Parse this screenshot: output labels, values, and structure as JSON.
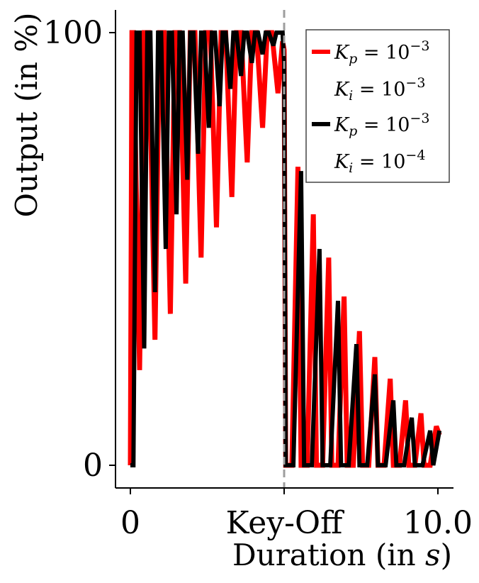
{
  "chart_data": {
    "type": "line",
    "xlabel": "Duration (in s)",
    "xlabel_parts": {
      "prefix": "Duration (in ",
      "var": "s",
      "suffix": ")"
    },
    "ylabel": "Output (in %)",
    "xlim": [
      -0.5,
      10.5
    ],
    "ylim": [
      -5,
      105
    ],
    "x_ticks": [
      {
        "value": 0,
        "label": "0"
      },
      {
        "value": 5,
        "label": "Key-Off"
      },
      {
        "value": 10,
        "label": "10.0"
      }
    ],
    "y_ticks": [
      {
        "value": 0,
        "label": "0"
      },
      {
        "value": 100,
        "label": "100"
      }
    ],
    "key_off": 5,
    "legend_position": "top-right",
    "grid": false,
    "series": [
      {
        "name": "Kp = 10^-3, Ki = 10^-3",
        "legend_lines": [
          {
            "sym": "K",
            "sub": "p",
            "eq": " = 10",
            "sup": "−3"
          },
          {
            "sym": "K",
            "sub": "i",
            "eq": " = 10",
            "sup": "−3"
          }
        ],
        "color": "#ff0000",
        "line_width": 7,
        "x": [
          0,
          0.05,
          0.1,
          0.3,
          0.45,
          0.6,
          0.8,
          0.95,
          1.1,
          1.3,
          1.45,
          1.6,
          1.8,
          1.95,
          2.1,
          2.3,
          2.45,
          2.6,
          2.8,
          2.95,
          3.1,
          3.3,
          3.45,
          3.6,
          3.8,
          3.95,
          4.1,
          4.3,
          4.45,
          4.6,
          4.8,
          4.95,
          5.0,
          5.05,
          5.25,
          5.45,
          5.55,
          5.75,
          5.95,
          6.05,
          6.25,
          6.45,
          6.55,
          6.75,
          6.95,
          7.05,
          7.25,
          7.45,
          7.55,
          7.75,
          7.95,
          8.05,
          8.25,
          8.45,
          8.55,
          8.75,
          8.95,
          9.05,
          9.25,
          9.45,
          9.55,
          9.75,
          9.95,
          10.05
        ],
        "y": [
          0,
          100,
          100,
          22,
          100,
          100,
          29,
          100,
          100,
          35,
          100,
          100,
          42,
          100,
          100,
          48,
          100,
          100,
          55,
          100,
          100,
          62,
          100,
          100,
          70,
          100,
          100,
          78,
          100,
          100,
          86,
          98,
          96,
          0,
          0,
          69,
          0,
          0,
          58,
          0,
          0,
          48,
          0,
          0,
          39,
          0,
          0,
          31,
          0,
          0,
          25,
          0,
          0,
          20,
          0,
          0,
          15,
          0,
          0,
          12,
          0,
          0,
          9,
          7
        ]
      },
      {
        "name": "Kp = 10^-3, Ki = 10^-4",
        "legend_lines": [
          {
            "sym": "K",
            "sub": "p",
            "eq": " = 10",
            "sup": "−3"
          },
          {
            "sym": "K",
            "sub": "i",
            "eq": " = 10",
            "sup": "−4"
          }
        ],
        "color": "#000000",
        "line_width": 6,
        "x": [
          0,
          0.1,
          0.2,
          0.3,
          0.45,
          0.55,
          0.65,
          0.8,
          0.9,
          1.0,
          1.15,
          1.25,
          1.35,
          1.5,
          1.6,
          1.7,
          1.85,
          1.95,
          2.05,
          2.2,
          2.3,
          2.4,
          2.55,
          2.65,
          2.75,
          2.9,
          3.0,
          3.1,
          3.25,
          3.35,
          3.45,
          3.6,
          3.7,
          3.8,
          3.95,
          4.05,
          4.15,
          4.3,
          4.4,
          4.5,
          4.65,
          4.75,
          4.85,
          4.95,
          5.0,
          5.05,
          5.3,
          5.55,
          5.65,
          5.9,
          6.15,
          6.25,
          6.5,
          6.75,
          6.85,
          7.1,
          7.35,
          7.45,
          7.7,
          7.95,
          8.05,
          8.3,
          8.55,
          8.65,
          8.9,
          9.15,
          9.25,
          9.5,
          9.75,
          9.85,
          10.05
        ],
        "y": [
          0,
          0,
          100,
          100,
          27,
          100,
          100,
          40,
          100,
          100,
          50,
          100,
          100,
          58,
          100,
          100,
          66,
          100,
          100,
          72,
          100,
          100,
          78,
          100,
          100,
          83,
          100,
          100,
          87,
          100,
          100,
          90,
          100,
          100,
          93,
          100,
          100,
          95,
          100,
          100,
          97,
          100,
          100,
          100,
          93,
          0,
          0,
          68,
          0,
          0,
          50,
          0,
          0,
          38,
          0,
          0,
          28,
          0,
          0,
          21,
          0,
          0,
          15,
          0,
          0,
          11,
          0,
          0,
          8,
          0,
          8
        ]
      }
    ]
  }
}
